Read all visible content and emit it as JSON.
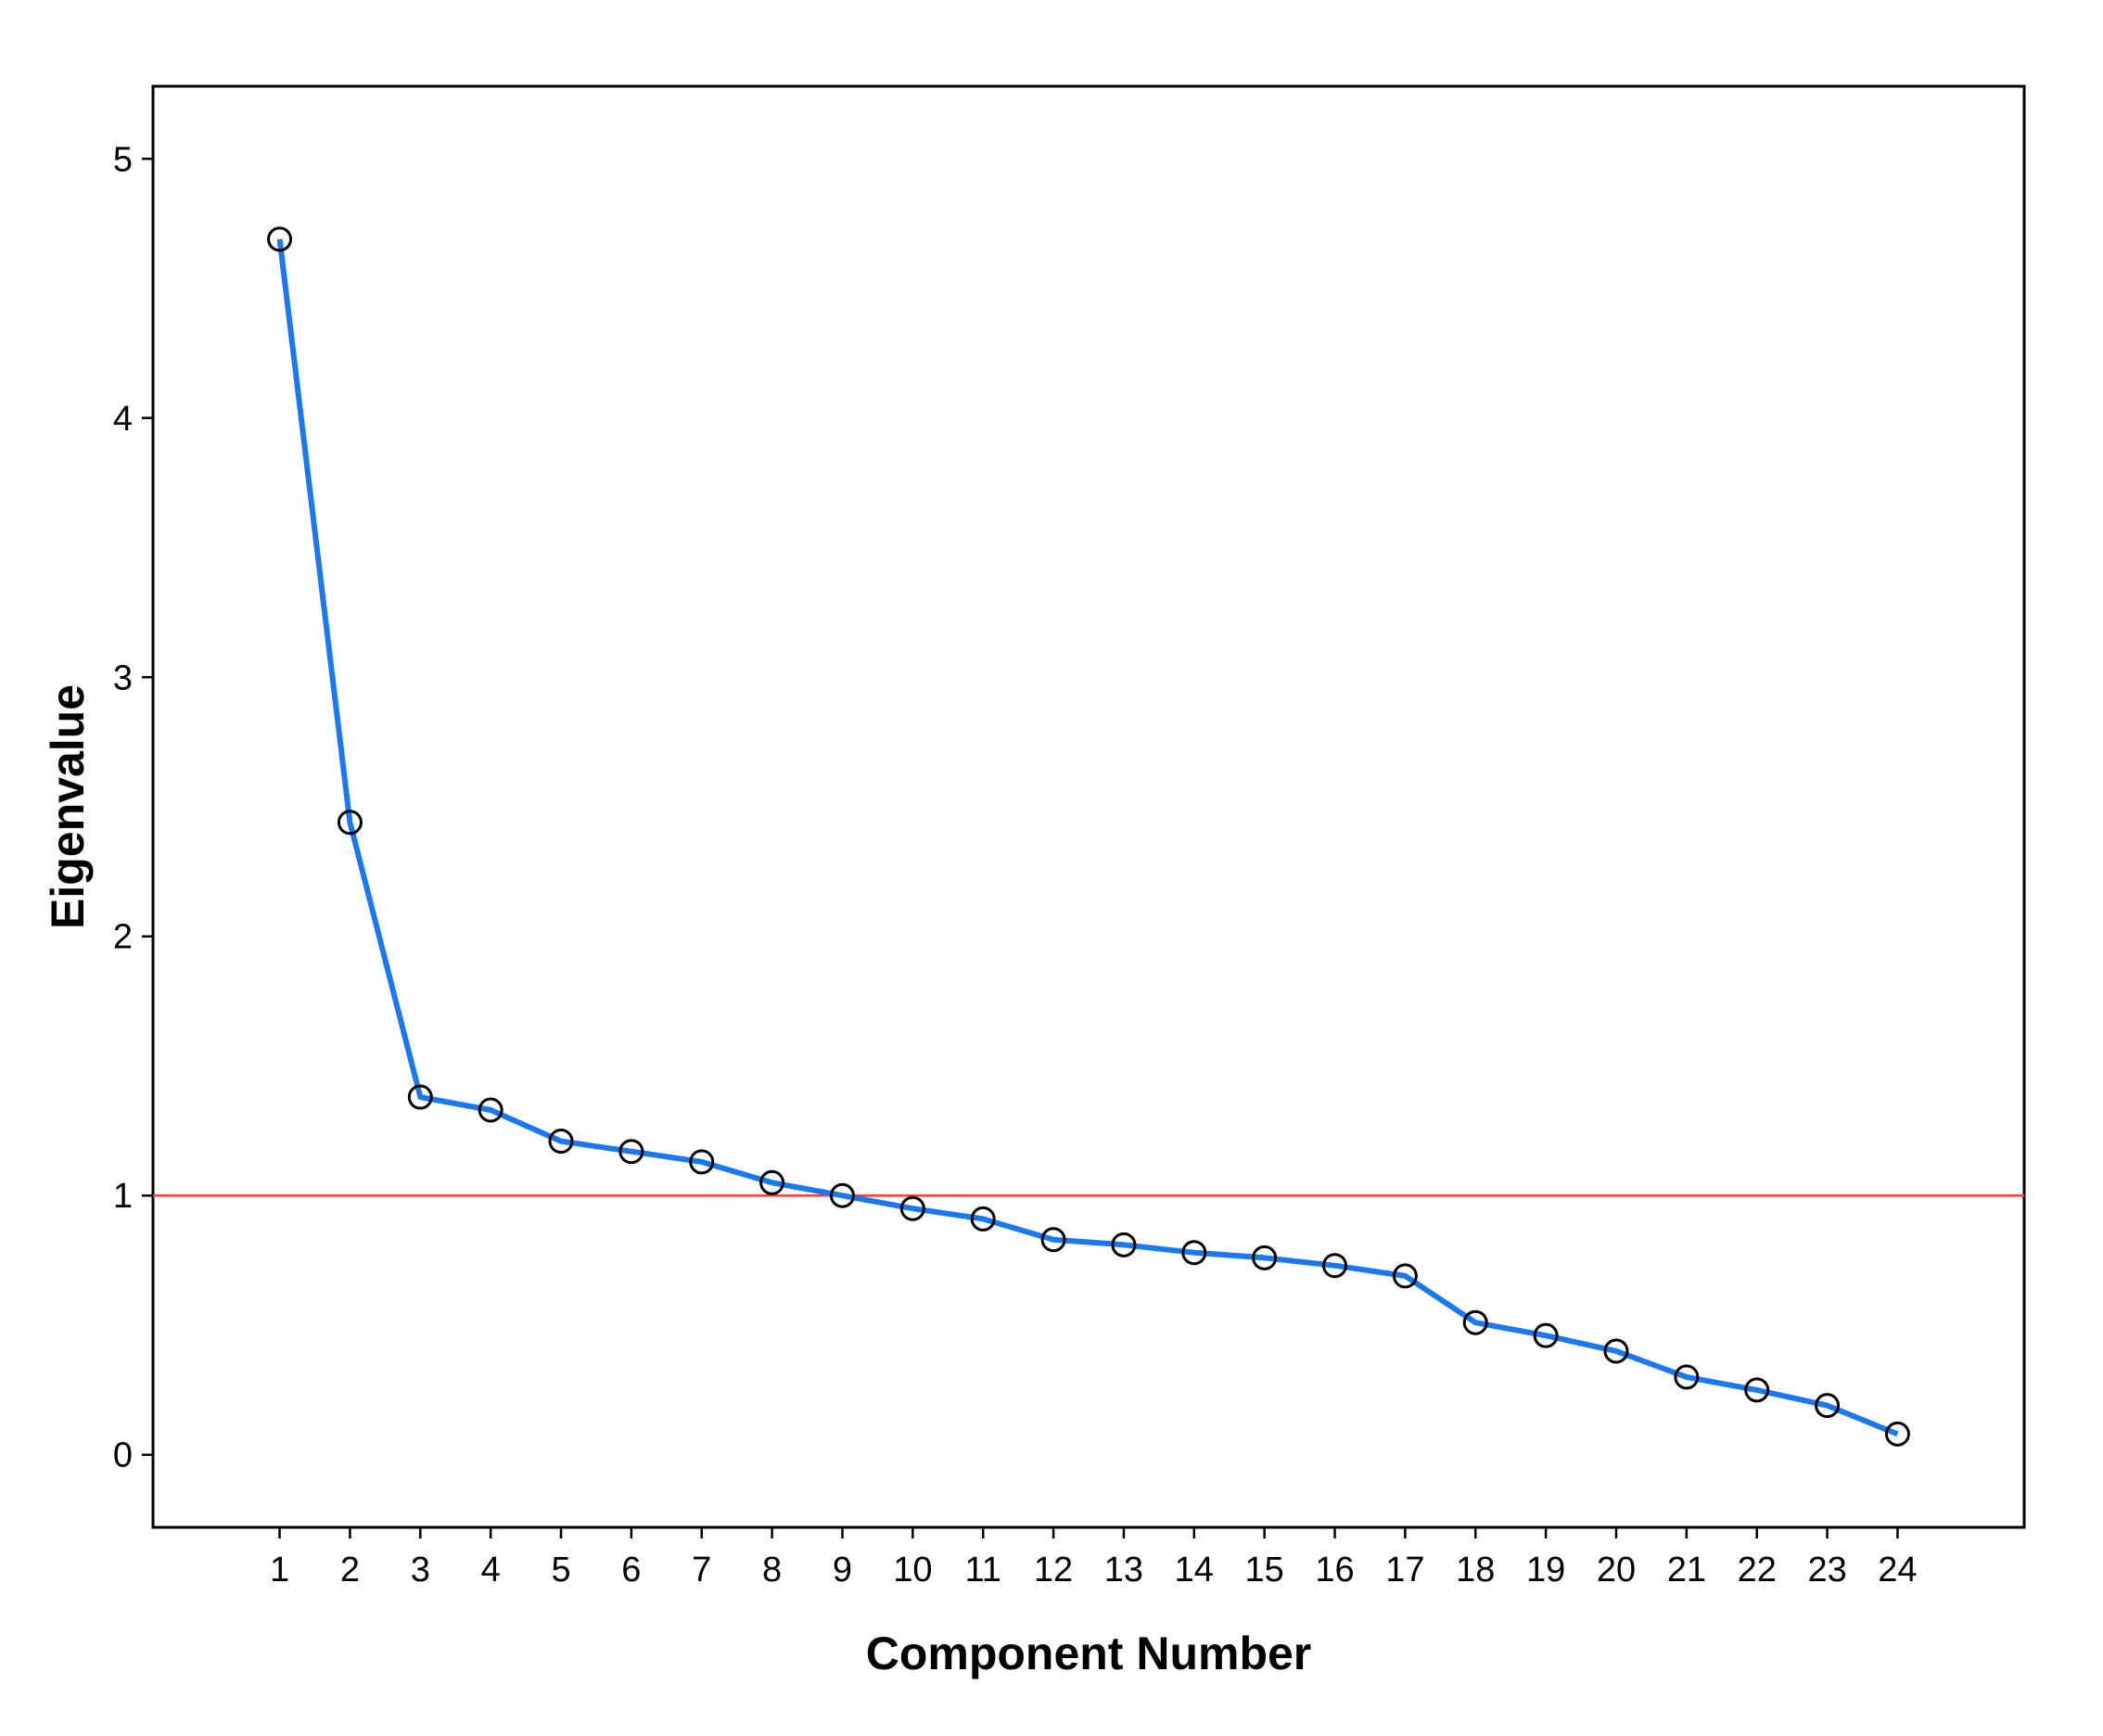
{
  "chart_data": {
    "type": "line",
    "title": "",
    "xlabel": "Component Number",
    "ylabel": "Eigenvalue",
    "x": [
      1,
      2,
      3,
      4,
      5,
      6,
      7,
      8,
      9,
      10,
      11,
      12,
      13,
      14,
      15,
      16,
      17,
      18,
      19,
      20,
      21,
      22,
      23,
      24
    ],
    "x_tick_labels": [
      "1",
      "2",
      "3",
      "4",
      "5",
      "6",
      "7",
      "8",
      "9",
      "10",
      "11",
      "12",
      "13",
      "14",
      "15",
      "16",
      "17",
      "18",
      "19",
      "20",
      "21",
      "22",
      "23",
      "24"
    ],
    "series": [
      {
        "values": [
          4.69,
          2.44,
          1.38,
          1.33,
          1.21,
          1.17,
          1.13,
          1.05,
          1.0,
          0.95,
          0.91,
          0.83,
          0.81,
          0.78,
          0.76,
          0.73,
          0.69,
          0.51,
          0.46,
          0.4,
          0.3,
          0.25,
          0.19,
          0.08
        ],
        "color": "#1a78f0",
        "marker": "open-circle",
        "marker_color": "#000000"
      }
    ],
    "reference_line": {
      "y": 1,
      "color": "#ff3b3b"
    },
    "ylim": [
      -0.28,
      5.28
    ],
    "xlim": [
      -0.8,
      25.8
    ],
    "y_ticks": [
      0,
      1,
      2,
      3,
      4,
      5
    ],
    "y_tick_labels": [
      "0",
      "1",
      "2",
      "3",
      "4",
      "5"
    ],
    "grid": false,
    "legend": "none"
  }
}
